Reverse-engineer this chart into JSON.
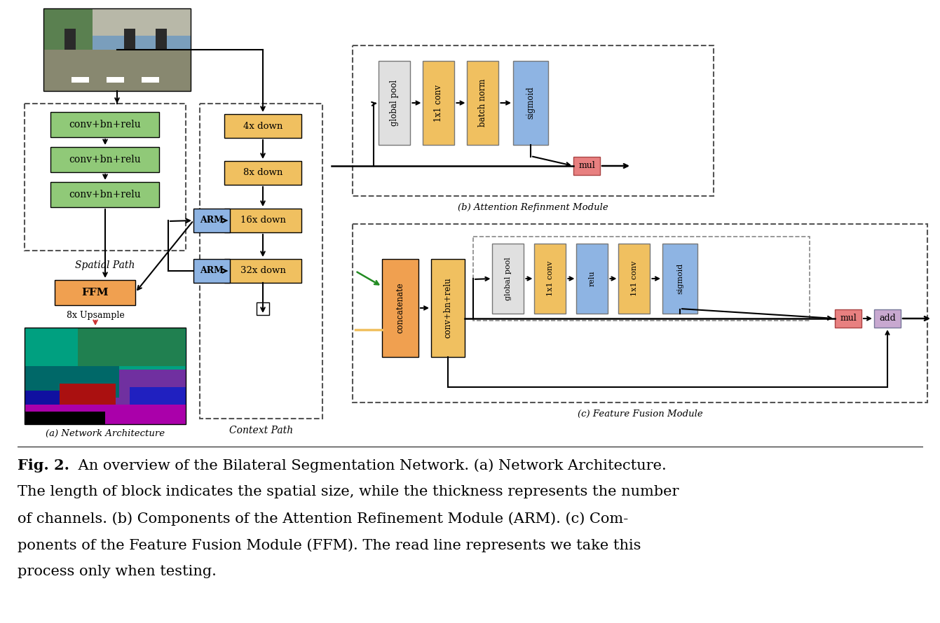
{
  "bg_color": "#ffffff",
  "colors": {
    "green": "#90C978",
    "yellow": "#F0C060",
    "blue": "#8EB4E3",
    "orange": "#F0A050",
    "red_pink": "#E88080",
    "purple": "#C8A8D0",
    "light_gray": "#E0E0E0",
    "dashed": "#555555"
  },
  "caption_bold": "Fig. 2.",
  "caption_lines": [
    "Fig. 2. An overview of the Bilateral Segmentation Network. (a) Network Architecture.",
    "The length of block indicates the spatial size, while the thickness represents the number",
    "of channels. (b) Components of the Attention Refinement Module (ARM). (c) Com-",
    "ponents of the Feature Fusion Module (FFM). The read line represents we take this",
    "process only when testing."
  ]
}
